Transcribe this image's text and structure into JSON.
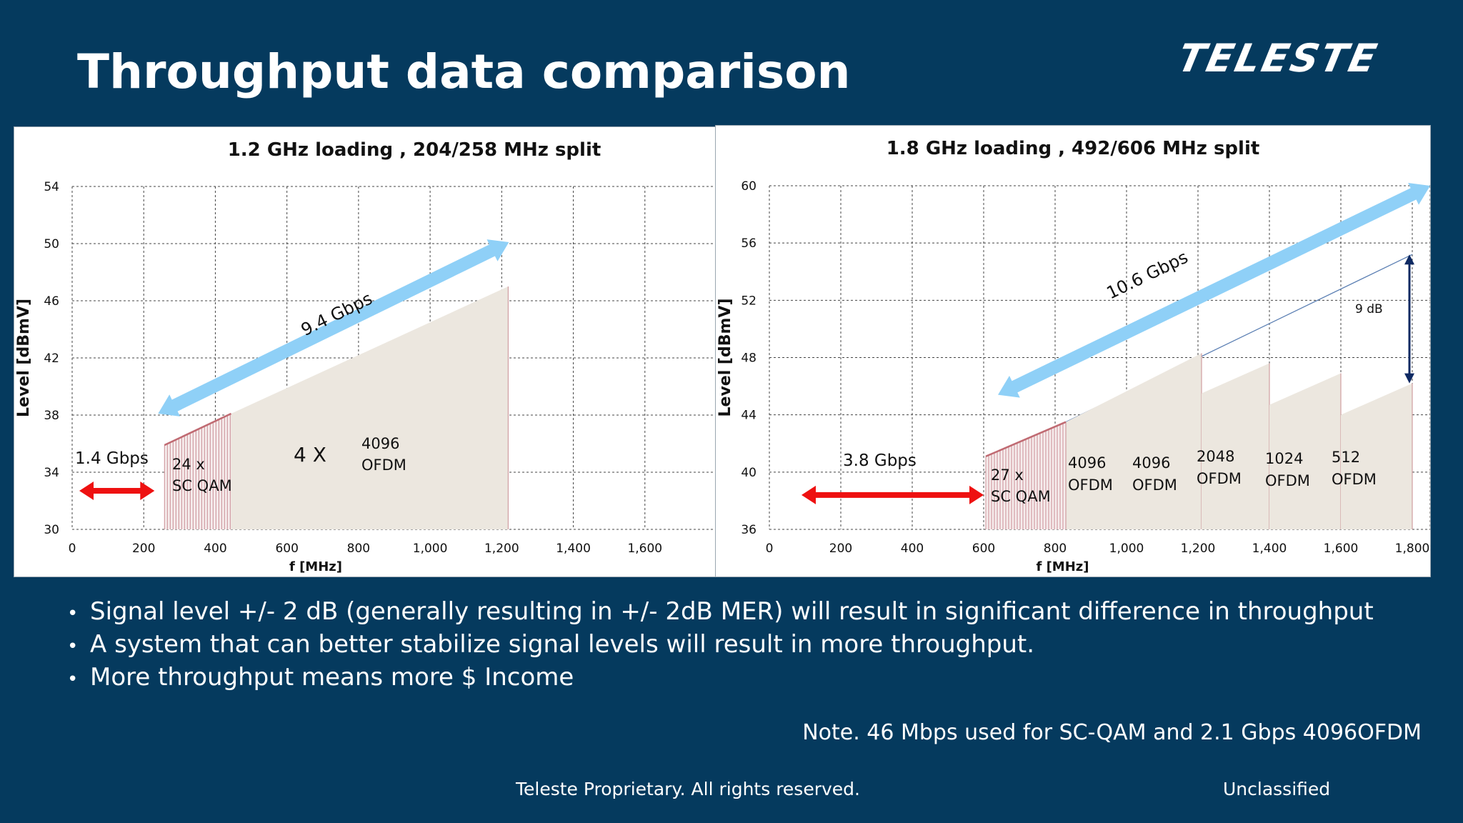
{
  "slide": {
    "title": "Throughput data comparison",
    "logo": "TELESTE",
    "bullets": [
      "Signal level +/- 2 dB (generally resulting in +/- 2dB MER) will result in significant difference in throughput",
      "A system that can better stabilize signal levels will result in more throughput.",
      "More throughput means more $ Income"
    ],
    "note": "Note. 46 Mbps used for SC-QAM and 2.1 Gbps 4096OFDM",
    "footer_left": "Teleste Proprietary. All rights reserved.",
    "footer_right": "Unclassified"
  },
  "colors": {
    "background": "#053a5e",
    "area_fill": "#ece7df",
    "scqam_line": "#c98c92",
    "arrow_blue": "#8fd0f7",
    "arrow_red": "#ee1111",
    "arrow_navy": "#0f2a63",
    "ref_line": "#5b7fb3"
  },
  "chart_data": [
    {
      "type": "area",
      "title": "1.2 GHz loading , 204/258 MHz split",
      "xlabel": "f [MHz]",
      "ylabel": "Level [dBmV]",
      "xlim": [
        0,
        1800
      ],
      "ylim": [
        30,
        54
      ],
      "x_ticks": [
        0,
        200,
        400,
        600,
        800,
        1000,
        1200,
        1400,
        1600
      ],
      "x_tick_labels": [
        "0",
        "200",
        "400",
        "600",
        "800",
        "1,000",
        "1,200",
        "1,400",
        "1,600"
      ],
      "y_ticks": [
        30,
        34,
        38,
        42,
        46,
        50,
        54
      ],
      "grid": true,
      "scqam": {
        "x": [
          258,
          444
        ],
        "y": [
          35.9,
          38.1
        ]
      },
      "ofdm": [
        {
          "x": [
            444,
            1218
          ],
          "y": [
            38.1,
            47.0
          ]
        }
      ],
      "upstream_arrow": {
        "x": [
          20,
          230
        ],
        "y": 32.7
      },
      "throughput_arrow": {
        "x": [
          240,
          1220
        ],
        "y": [
          38.1,
          50.1
        ]
      },
      "labels": {
        "upstream": "1.4 Gbps",
        "throughput": "9.4 Gbps",
        "scqam_line1": "24 x",
        "scqam_line2": "SC QAM",
        "multiplier": "4 X",
        "ofdm_line1": "4096",
        "ofdm_line2": "OFDM"
      }
    },
    {
      "type": "area",
      "title": "1.8 GHz loading , 492/606 MHz split",
      "xlabel": "f [MHz]",
      "ylabel": "Level [dBmV]",
      "xlim": [
        0,
        1850
      ],
      "ylim": [
        36,
        60
      ],
      "x_ticks": [
        0,
        200,
        400,
        600,
        800,
        1000,
        1200,
        1400,
        1600,
        1800
      ],
      "x_tick_labels": [
        "0",
        "200",
        "400",
        "600",
        "800",
        "1,000",
        "1,200",
        "1,400",
        "1,600",
        "1,800"
      ],
      "y_ticks": [
        36,
        40,
        44,
        48,
        52,
        56,
        60
      ],
      "grid": true,
      "scqam": {
        "x": [
          606,
          830
        ],
        "y": [
          41.1,
          43.5
        ]
      },
      "ofdm": [
        {
          "x": [
            830,
            1210
          ],
          "y": [
            43.5,
            48.3
          ],
          "label1": "4096",
          "label2": "OFDM"
        },
        {
          "x": [
            1210,
            1400
          ],
          "y": [
            45.5,
            47.6
          ],
          "label1": "2048",
          "label2": "OFDM"
        },
        {
          "x": [
            1400,
            1600
          ],
          "y": [
            44.7,
            46.9
          ],
          "label1": "1024",
          "label2": "OFDM"
        },
        {
          "x": [
            1600,
            1800
          ],
          "y": [
            44.0,
            46.2
          ],
          "label1": "512",
          "label2": "OFDM"
        }
      ],
      "reference_line": {
        "x": [
          830,
          1800
        ],
        "y": [
          43.5,
          55.2
        ]
      },
      "upstream_arrow": {
        "x": [
          90,
          600
        ],
        "y": 38.4
      },
      "throughput_arrow": {
        "x": [
          640,
          1850
        ],
        "y": [
          45.4,
          60.0
        ]
      },
      "delta_arrow": {
        "x": 1800,
        "y": [
          55.2,
          46.2
        ]
      },
      "labels": {
        "upstream": "3.8 Gbps",
        "throughput": "10.6 Gbps",
        "scqam_line1": "27 x",
        "scqam_line2": "SC QAM",
        "delta": "9 dB",
        "first_ofdm_line1": "4096",
        "first_ofdm_line2": "OFDM"
      }
    }
  ]
}
